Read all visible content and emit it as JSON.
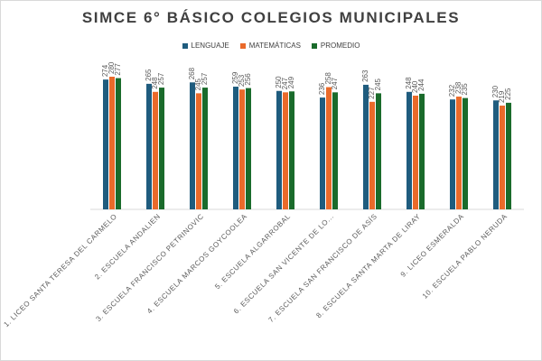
{
  "chart_data": {
    "type": "bar",
    "title": "SIMCE 6° BÁSICO COLEGIOS MUNICIPALES",
    "categories": [
      "1. LICEO SANTA TERESA DEL CARMELO",
      "2. ESCUELA ANDALIEN",
      "3. ESCUELA FRANCISCO PETRINOVIC",
      "4. ESCUELA MARCOS GOYCOOLEA",
      "5. ESCUELA ALGARROBAL",
      "6. ESCUELA SAN VICENTE DE LO...",
      "7. ESCUELA SAN FRANCISCO DE ASÍS",
      "8. ESCUELA SANTA MARTA DE LIRAY",
      "9. LICEO ESMERALDA",
      "10. ESCUELA PABLO NERUDA"
    ],
    "series": [
      {
        "name": "LENGUAJE",
        "color": "#1f5c7e",
        "values": [
          274,
          265,
          268,
          259,
          250,
          236,
          263,
          248,
          232,
          230
        ]
      },
      {
        "name": "MATEMÁTICAS",
        "color": "#ea6a2a",
        "values": [
          280,
          248,
          245,
          253,
          247,
          258,
          227,
          240,
          238,
          219
        ]
      },
      {
        "name": "PROMEDIO",
        "color": "#1a6b2b",
        "values": [
          277,
          257,
          257,
          256,
          249,
          247,
          245,
          244,
          235,
          225
        ]
      }
    ],
    "ylim": [
      0,
      300
    ],
    "grid": false,
    "legend_position": "top"
  }
}
